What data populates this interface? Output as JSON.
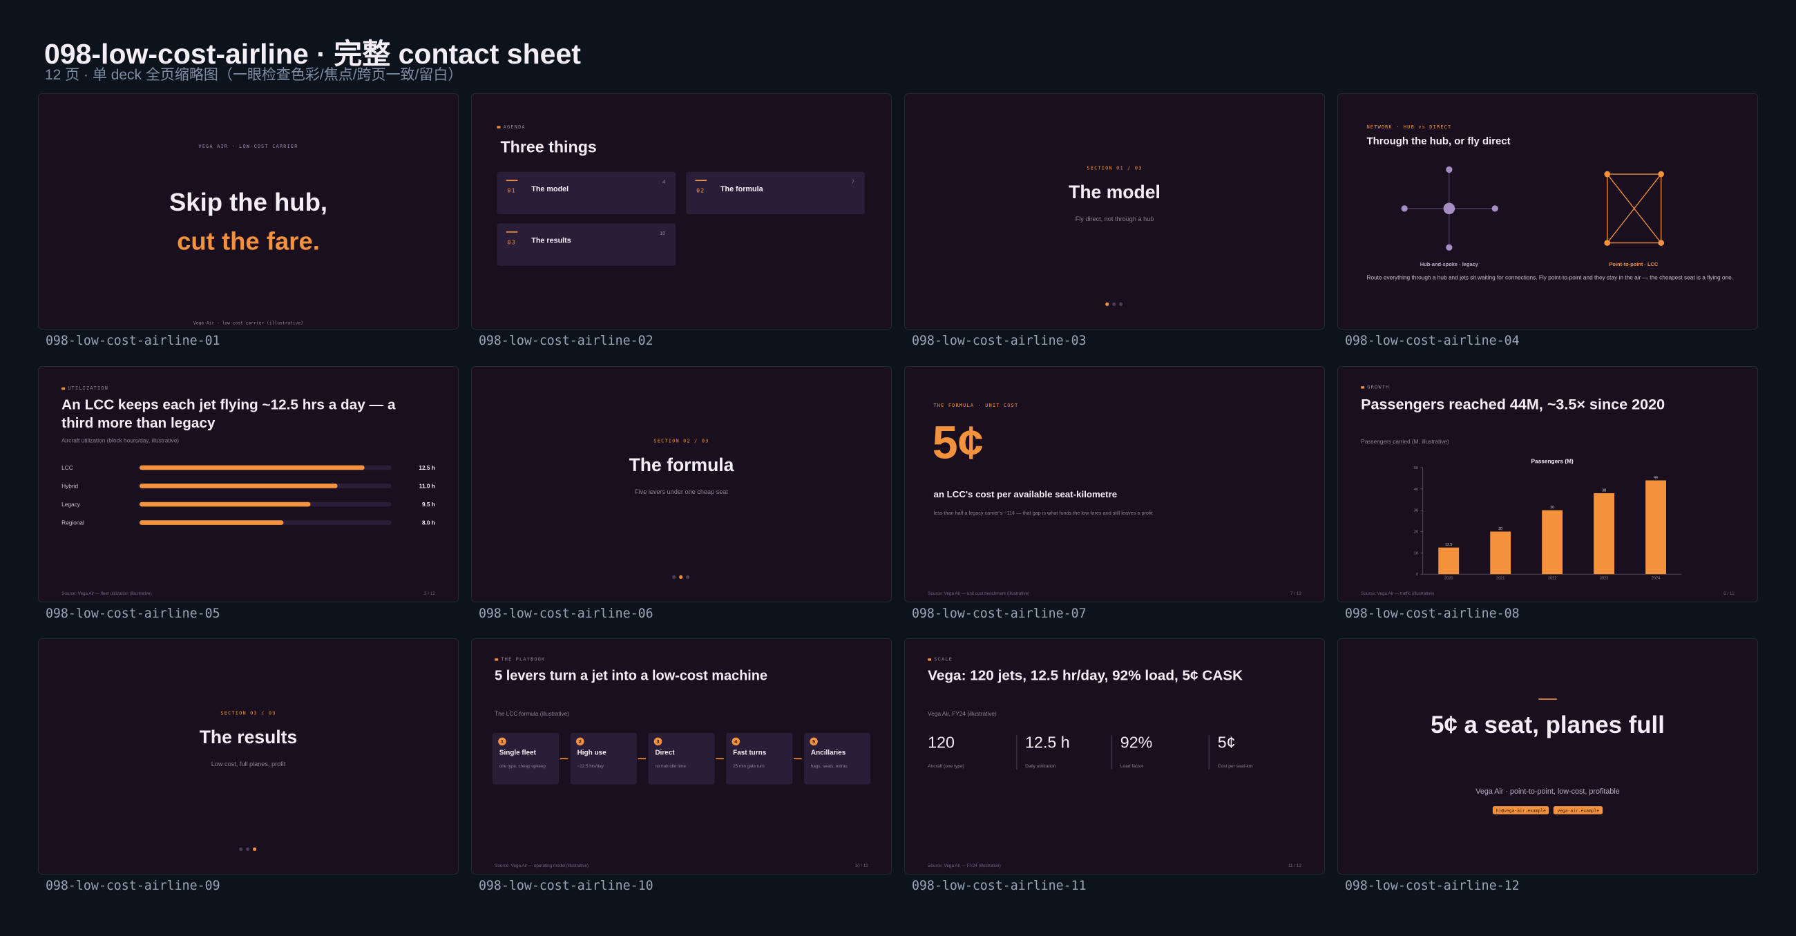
{
  "header": {
    "title": "098-low-cost-airline · 完整 contact sheet",
    "subtitle": "12 页 · 单 deck 全页缩略图（一眼检查色彩/焦点/跨页一致/留白）"
  },
  "slides": [
    {
      "caption": "098-low-cost-airline-01",
      "kicker": "VEGA AIR · LOW-COST CARRIER",
      "title": [
        "Skip the hub,",
        "cut the fare."
      ],
      "footer": "Vega Air · low-cost carrier (illustrative)"
    },
    {
      "caption": "098-low-cost-airline-02",
      "kicker": "AGENDA",
      "title": "Three things",
      "items": [
        {
          "number": "01",
          "title": "The model",
          "page": "4"
        },
        {
          "number": "02",
          "title": "The formula",
          "page": "7"
        },
        {
          "number": "03",
          "title": "The results",
          "page": "10"
        }
      ]
    },
    {
      "caption": "098-low-cost-airline-03",
      "kicker": "SECTION 01 / 03",
      "title": "The model",
      "subtitle": "Fly direct, not through a hub"
    },
    {
      "caption": "098-low-cost-airline-04",
      "kicker": "NETWORK · HUB vs DIRECT",
      "title": "Through the hub, or fly direct",
      "labels": [
        "Hub-and-spoke · legacy",
        "Point-to-point · LCC"
      ],
      "body": "Route everything through a hub and jets sit waiting for connections. Fly point-to-point and they stay in the air — the cheapest seat is a flying one."
    },
    {
      "caption": "098-low-cost-airline-05",
      "kicker": "UTILIZATION",
      "title": "An LCC keeps each jet flying ~12.5 hrs a day — a third more than legacy",
      "subtitle": "Aircraft utilization (block hours/day, illustrative)",
      "chart": {
        "type": "bar",
        "orientation": "horizontal",
        "categories": [
          "LCC",
          "Hybrid",
          "Legacy",
          "Regional"
        ],
        "values": [
          12.5,
          11.0,
          9.5,
          8.0
        ],
        "value_labels": [
          "12.5 h",
          "11.0 h",
          "9.5 h",
          "8.0 h"
        ],
        "xlim": [
          0,
          14
        ],
        "color": "#f5923e"
      },
      "footer": "Source: Vega Air — fleet utilization (illustrative)",
      "page": "5 / 12"
    },
    {
      "caption": "098-low-cost-airline-06",
      "kicker": "SECTION 02 / 03",
      "title": "The formula",
      "subtitle": "Five levers under one cheap seat"
    },
    {
      "caption": "098-low-cost-airline-07",
      "kicker": "THE FORMULA · UNIT COST",
      "big": "5¢",
      "title": "an LCC's cost per available seat-kilometre",
      "subtitle": "less than half a legacy carrier's ~11¢ — that gap is what funds the low fares and still leaves a profit",
      "footer": "Source: Vega Air — unit cost benchmark (illustrative)",
      "page": "7 / 12"
    },
    {
      "caption": "098-low-cost-airline-08",
      "kicker": "GROWTH",
      "title": "Passengers reached 44M, ~3.5× since 2020",
      "subtitle": "Passengers carried (M, illustrative)",
      "chart": {
        "type": "bar",
        "orientation": "vertical",
        "title": "Passengers (M)",
        "categories": [
          "2020",
          "2021",
          "2022",
          "2023",
          "2024"
        ],
        "values": [
          12.5,
          20,
          30,
          38,
          44
        ],
        "ylim": [
          0,
          50
        ],
        "yticks": [
          0,
          10,
          20,
          30,
          40,
          50
        ],
        "color": "#f5923e"
      },
      "footer": "Source: Vega Air — traffic (illustrative)",
      "page": "8 / 12"
    },
    {
      "caption": "098-low-cost-airline-09",
      "kicker": "SECTION 03 / 03",
      "title": "The results",
      "subtitle": "Low cost, full planes, profit"
    },
    {
      "caption": "098-low-cost-airline-10",
      "kicker": "THE PLAYBOOK",
      "title": "5 levers turn a jet into a low-cost machine",
      "subtitle": "The LCC formula (illustrative)",
      "steps": [
        {
          "number": "1",
          "title": "Single fleet",
          "text": "one type, cheap upkeep"
        },
        {
          "number": "2",
          "title": "High use",
          "text": "~12.5 hrs/day"
        },
        {
          "number": "3",
          "title": "Direct",
          "text": "no hub idle time"
        },
        {
          "number": "4",
          "title": "Fast turns",
          "text": "25 min gate turn"
        },
        {
          "number": "5",
          "title": "Ancillaries",
          "text": "bags, seats, extras"
        }
      ],
      "footer": "Source: Vega Air — operating model (illustrative)",
      "page": "10 / 12"
    },
    {
      "caption": "098-low-cost-airline-11",
      "kicker": "SCALE",
      "title": "Vega: 120 jets, 12.5 hr/day, 92% load, 5¢ CASK",
      "subtitle": "Vega Air, FY24 (illustrative)",
      "stats": [
        {
          "value": "120",
          "label": "Aircraft (one type)"
        },
        {
          "value": "12.5 h",
          "label": "Daily utilization"
        },
        {
          "value": "92%",
          "label": "Load factor"
        },
        {
          "value": "5¢",
          "label": "Cost per seat-km"
        }
      ],
      "footer": "Source: Vega Air — FY24 (illustrative)",
      "page": "11 / 12"
    },
    {
      "caption": "098-low-cost-airline-12",
      "title": "5¢ a seat, planes full",
      "subtitle": "Vega Air · point-to-point, low-cost, profitable",
      "tags": [
        "hi@vega-air.example",
        "vega-air.example"
      ]
    }
  ]
}
